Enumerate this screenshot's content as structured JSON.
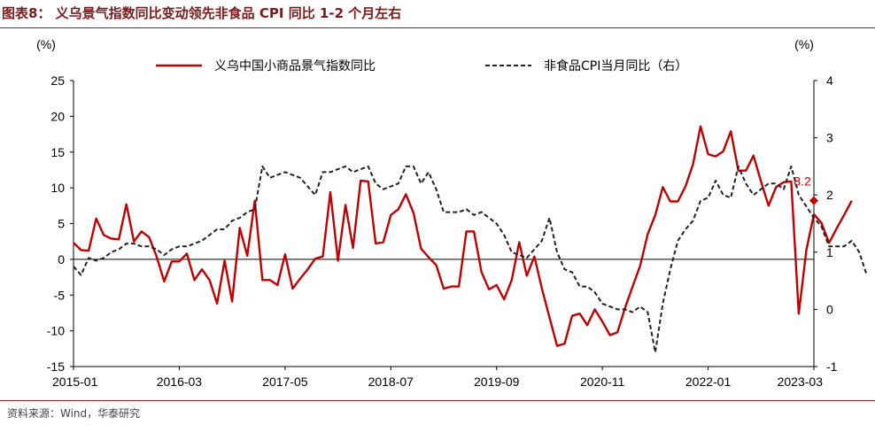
{
  "title": "图表8：  义乌景气指数同比变动领先非食品 CPI 同比 1-2 个月左右",
  "source": "资料来源：Wind，华泰研究",
  "chart_data": {
    "type": "line",
    "left_unit": "(%)",
    "right_unit": "(%)",
    "x_ticks": [
      "2015-01",
      "2016-03",
      "2017-05",
      "2018-07",
      "2019-09",
      "2020-11",
      "2022-01",
      "2023-03"
    ],
    "y_left": {
      "min": -15,
      "max": 25,
      "ticks": [
        "-15",
        "-10",
        "-5",
        "0",
        "5",
        "10",
        "15",
        "20",
        "25"
      ]
    },
    "y_right": {
      "min": -1,
      "max": 4,
      "ticks": [
        "-1",
        "0",
        "1",
        "2",
        "3",
        "4"
      ]
    },
    "legend_position": "top",
    "annotation": {
      "text": "8.2",
      "month": "2023-03",
      "value": 8.2
    },
    "series": [
      {
        "name": "义乌中国小商品景气指数同比",
        "axis": "left",
        "color": "#c00000",
        "dash": "solid",
        "start": "2015-01",
        "values": [
          2.3,
          1.3,
          1.2,
          5.7,
          3.4,
          2.9,
          2.8,
          7.7,
          2.5,
          3.9,
          3.1,
          0.4,
          -3.1,
          -0.3,
          -0.3,
          0.8,
          -2.9,
          -1.4,
          -2.9,
          -6.2,
          -0.2,
          -5.9,
          4.4,
          0.5,
          8.2,
          -2.9,
          -2.9,
          -3.6,
          0.7,
          -4.1,
          -2.7,
          -1.4,
          0.1,
          0.4,
          9.4,
          -0.2,
          7.6,
          1.6,
          11.0,
          10.9,
          2.2,
          2.4,
          6.2,
          7.0,
          9.1,
          6.5,
          1.5,
          0.3,
          -0.8,
          -4.1,
          -3.8,
          -3.8,
          3.9,
          3.9,
          -1.8,
          -4.2,
          -3.6,
          -5.6,
          -2.9,
          2.4,
          -2.3,
          0.4,
          -4.1,
          -8.1,
          -12.1,
          -11.8,
          -7.9,
          -7.6,
          -9.2,
          -7.0,
          -8.7,
          -10.6,
          -10.2,
          -6.8,
          -3.8,
          -0.9,
          3.5,
          6.2,
          10.1,
          8.1,
          8.1,
          10.2,
          13.3,
          18.6,
          14.7,
          14.4,
          15.1,
          17.9,
          12.4,
          12.4,
          14.5,
          10.9,
          7.5,
          10.1,
          10.8,
          10.9,
          -7.6,
          1.3,
          6.3,
          5.1,
          2.3,
          4.3,
          6.2,
          8.2
        ]
      },
      {
        "name": "非食品CPI当月同比（右）",
        "axis": "right",
        "color": "#222222",
        "dash": "dashed",
        "start": "2015-01",
        "values": [
          0.75,
          0.6,
          0.9,
          0.85,
          0.9,
          1.0,
          1.05,
          1.15,
          1.15,
          1.1,
          1.1,
          1.05,
          0.95,
          1.05,
          1.1,
          1.1,
          1.15,
          1.2,
          1.3,
          1.4,
          1.4,
          1.55,
          1.6,
          1.7,
          1.75,
          2.5,
          2.3,
          2.35,
          2.4,
          2.35,
          2.3,
          2.15,
          2.0,
          2.4,
          2.4,
          2.45,
          2.5,
          2.4,
          2.45,
          2.5,
          2.2,
          2.1,
          2.15,
          2.2,
          2.5,
          2.5,
          2.2,
          2.4,
          2.1,
          1.7,
          1.7,
          1.7,
          1.75,
          1.65,
          1.7,
          1.6,
          1.5,
          1.3,
          1.0,
          0.95,
          0.9,
          1.05,
          1.2,
          1.6,
          1.0,
          0.7,
          0.65,
          0.4,
          0.4,
          0.3,
          0.1,
          0.05,
          0.0,
          0.0,
          -0.05,
          0.05,
          -0.05,
          -0.75,
          0.1,
          0.7,
          1.2,
          1.4,
          1.55,
          1.9,
          1.95,
          2.25,
          2.0,
          1.95,
          2.5,
          2.2,
          2.0,
          2.1,
          2.2,
          2.2,
          2.1,
          2.5,
          2.0,
          1.8,
          1.6,
          1.45,
          1.1,
          1.1,
          1.1,
          1.2,
          1.0,
          0.6
        ]
      }
    ]
  }
}
